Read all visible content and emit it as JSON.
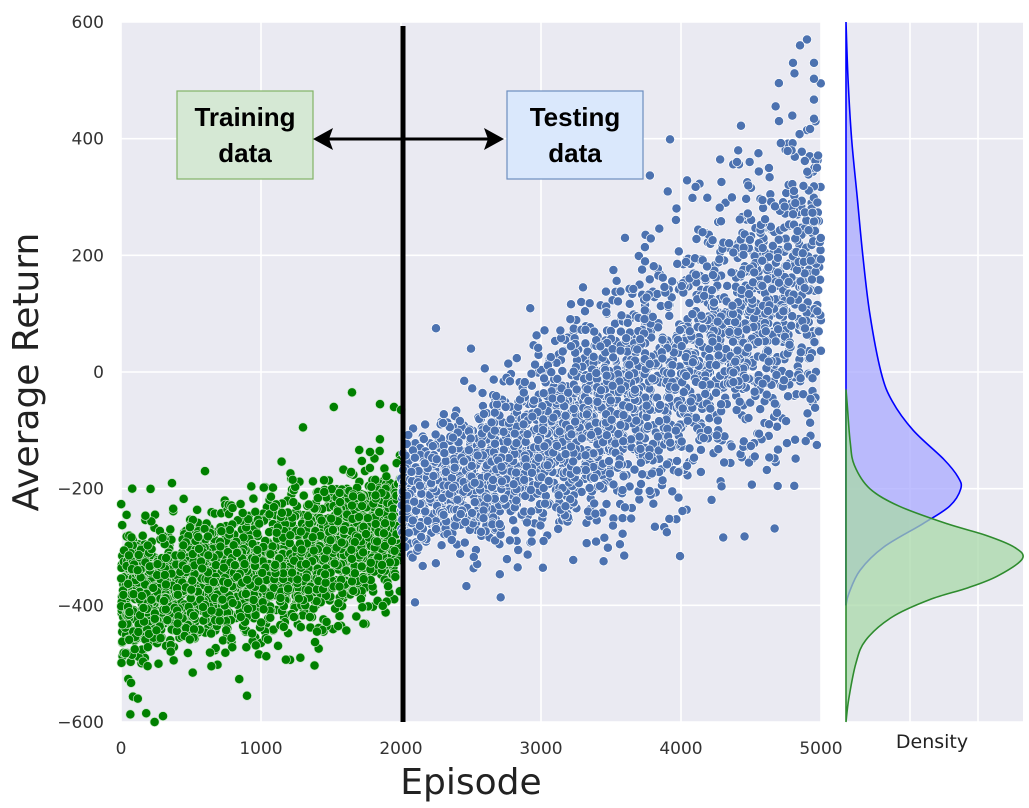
{
  "chart_data": [
    {
      "type": "scatter",
      "xlabel": "Episode",
      "ylabel": "Average Return",
      "xlim": [
        0,
        5000
      ],
      "ylim": [
        -600,
        600
      ],
      "xticks": [
        0,
        1000,
        2000,
        3000,
        4000,
        5000
      ],
      "yticks": [
        -600,
        -400,
        -200,
        0,
        200,
        400,
        600
      ],
      "xtick_labels": [
        "0",
        "1000",
        "2000",
        "3000",
        "4000",
        "5000"
      ],
      "ytick_labels": [
        "−600",
        "−400",
        "−200",
        "0",
        "200",
        "400",
        "600"
      ],
      "grid": true,
      "split_line_x": 2000,
      "series": [
        {
          "color": "#008000",
          "x_range": [
            0,
            2000
          ],
          "trend_start": -390,
          "trend_end": -260,
          "spread_start": 60,
          "spread_end": 55,
          "x": [
            120,
            180,
            240,
            300,
            900,
            1400,
            1650,
            1520,
            1850,
            1950,
            2000,
            80,
            40,
            600,
            1300
          ],
          "y": [
            -560,
            -585,
            -600,
            -590,
            -555,
            -445,
            -35,
            -60,
            -55,
            -60,
            -65,
            -200,
            -245,
            -170,
            -95
          ]
        },
        {
          "color": "#4c72b0",
          "x_range": [
            2000,
            5000
          ],
          "trend_start": -215,
          "trend_end": 200,
          "spread_start": 45,
          "spread_end": 140,
          "x": [
            4900,
            4850,
            4950,
            4800,
            4700,
            4400,
            3600,
            2250,
            2500,
            3300,
            2100
          ],
          "y": [
            570,
            560,
            530,
            530,
            430,
            360,
            230,
            75,
            40,
            145,
            -395
          ],
          "note_style": "white edge"
        }
      ]
    },
    {
      "type": "area",
      "xlabel": "Density",
      "orientation": "horizontal",
      "grid": true,
      "series": [
        {
          "color": "#0000ff",
          "fill": "#aaaaff",
          "y": [
            -400,
            -380,
            -340,
            -300,
            -260,
            -230,
            -200,
            -180,
            -150,
            -100,
            -50,
            0,
            100,
            200,
            300,
            400,
            500,
            600
          ],
          "density": [
            0.0,
            0.02,
            0.1,
            0.27,
            0.55,
            0.74,
            0.82,
            0.8,
            0.7,
            0.48,
            0.33,
            0.25,
            0.17,
            0.12,
            0.08,
            0.04,
            0.015,
            0.0
          ]
        },
        {
          "color": "#2e8b2e",
          "fill": "#a8d8a8",
          "y": [
            -600,
            -560,
            -500,
            -460,
            -420,
            -390,
            -370,
            -350,
            -320,
            -300,
            -280,
            -260,
            -230,
            -200,
            -160,
            -120,
            -60,
            -30
          ],
          "density": [
            0.0,
            0.02,
            0.07,
            0.14,
            0.33,
            0.6,
            0.87,
            1.08,
            1.26,
            1.2,
            1.0,
            0.72,
            0.38,
            0.17,
            0.06,
            0.03,
            0.01,
            0.0
          ]
        }
      ]
    }
  ],
  "annotations": {
    "training_label": [
      "Training",
      "data"
    ],
    "testing_label": [
      "Testing",
      "data"
    ],
    "training_box_color": "#d5e8d4",
    "training_border_color": "#82b366",
    "testing_box_color": "#dae8fc",
    "testing_border_color": "#6c8ebf"
  }
}
